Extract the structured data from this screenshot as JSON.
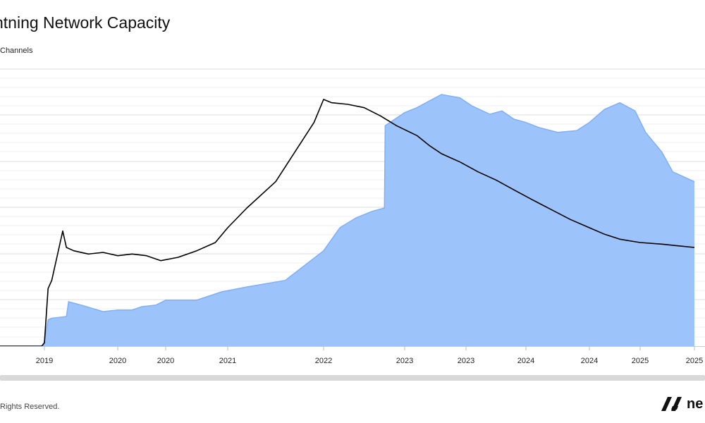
{
  "page": {
    "title": "ntning Network Capacity",
    "legend": "Channels",
    "footer": "Rights Reserved.",
    "brand_text": "ne"
  },
  "chart_data": {
    "type": "area",
    "title": "ntning Network Capacity",
    "xlabel": "",
    "ylabel": "",
    "x_tick_labels": [
      "2019",
      "2020",
      "2020",
      "2021",
      "2022",
      "2023",
      "2023",
      "2024",
      "2024",
      "2025",
      "2025"
    ],
    "grid": true,
    "colors": {
      "area_fill": "#9dc3fb",
      "area_stroke": "#7fb0f6",
      "line": "#000000"
    },
    "series": [
      {
        "name": "",
        "kind": "area",
        "x_tick_index": [
          -0.8,
          -0.02,
          0.0,
          0.05,
          0.1,
          0.3,
          0.33,
          0.5,
          0.8,
          1.0,
          1.3,
          1.5,
          1.8,
          2.0,
          2.5,
          2.9,
          3.2,
          3.6,
          3.8,
          4.0,
          4.2,
          4.4,
          4.6,
          4.75,
          4.76,
          5.0,
          5.2,
          5.4,
          5.6,
          5.9,
          6.1,
          6.4,
          6.6,
          6.8,
          7.0,
          7.2,
          7.5,
          7.8,
          8.0,
          8.3,
          8.6,
          8.9,
          9.1,
          9.4,
          9.6,
          10.0
        ],
        "values": [
          0,
          0,
          3,
          16,
          17,
          18,
          27,
          25,
          21,
          22,
          22,
          24,
          25,
          28,
          28,
          33,
          36,
          40,
          49,
          58,
          72,
          78,
          82,
          84,
          134,
          142,
          145,
          149,
          153,
          151,
          146,
          141,
          143,
          138,
          136,
          133,
          130,
          131,
          136,
          144,
          148,
          143,
          130,
          118,
          106,
          100
        ]
      },
      {
        "name": "",
        "kind": "line",
        "x_tick_index": [
          -0.8,
          -0.05,
          0.0,
          0.05,
          0.1,
          0.2,
          0.25,
          0.3,
          0.4,
          0.6,
          0.8,
          1.0,
          1.3,
          1.6,
          1.9,
          2.2,
          2.5,
          2.8,
          3.0,
          3.2,
          3.5,
          3.7,
          3.9,
          4.0,
          4.1,
          4.3,
          4.5,
          4.7,
          4.9,
          5.2,
          5.4,
          5.6,
          5.9,
          6.2,
          6.5,
          6.8,
          7.1,
          7.4,
          7.7,
          8.0,
          8.3,
          8.6,
          9.0,
          9.4,
          9.7,
          10.0
        ],
        "values": [
          0,
          0,
          2,
          35,
          40,
          60,
          70,
          60,
          58,
          56,
          57,
          55,
          56,
          55,
          52,
          54,
          58,
          63,
          72,
          84,
          100,
          118,
          136,
          150,
          148,
          147,
          145,
          140,
          134,
          128,
          122,
          117,
          112,
          106,
          101,
          95,
          89,
          83,
          77,
          72,
          68,
          65,
          63,
          62,
          61,
          60
        ]
      }
    ]
  }
}
